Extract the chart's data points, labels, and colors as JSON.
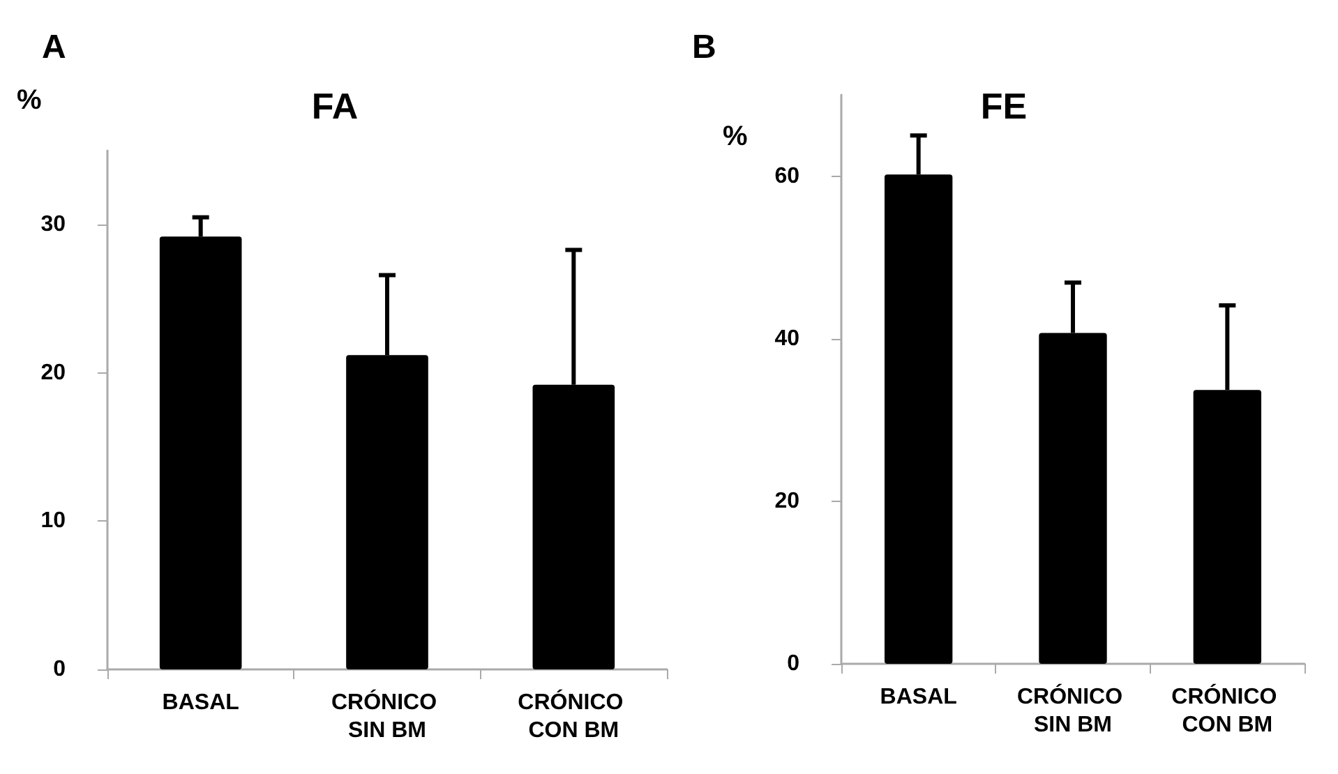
{
  "chart_data": [
    {
      "type": "bar",
      "title": "FA",
      "ylabel": "%",
      "annotations": [
        "A"
      ],
      "categories": [
        "BASAL",
        "CRÓNICO SIN BM",
        "CRÓNICO CON BM"
      ],
      "values": [
        29.2,
        21.2,
        19.2
      ],
      "errors": [
        [
          29.2,
          30.5
        ],
        [
          21.2,
          26.6
        ],
        [
          19.2,
          28.3
        ]
      ],
      "color": "#000000",
      "ylim": [
        0,
        35
      ],
      "yticks": [
        0,
        10,
        20,
        30
      ],
      "grid": false
    },
    {
      "type": "bar",
      "title": "FE",
      "ylabel": "%",
      "annotations": [
        "B"
      ],
      "categories": [
        "BASAL",
        "CRÓNICO SIN BM",
        "CRÓNICO CON BM"
      ],
      "values": [
        60.2,
        40.7,
        33.7
      ],
      "errors": [
        [
          60.2,
          65.0
        ],
        [
          40.7,
          46.9
        ],
        [
          33.7,
          44.1
        ]
      ],
      "color": "#000000",
      "ylim": [
        0,
        70
      ],
      "yticks": [
        0,
        20,
        40,
        60
      ],
      "grid": false
    }
  ]
}
